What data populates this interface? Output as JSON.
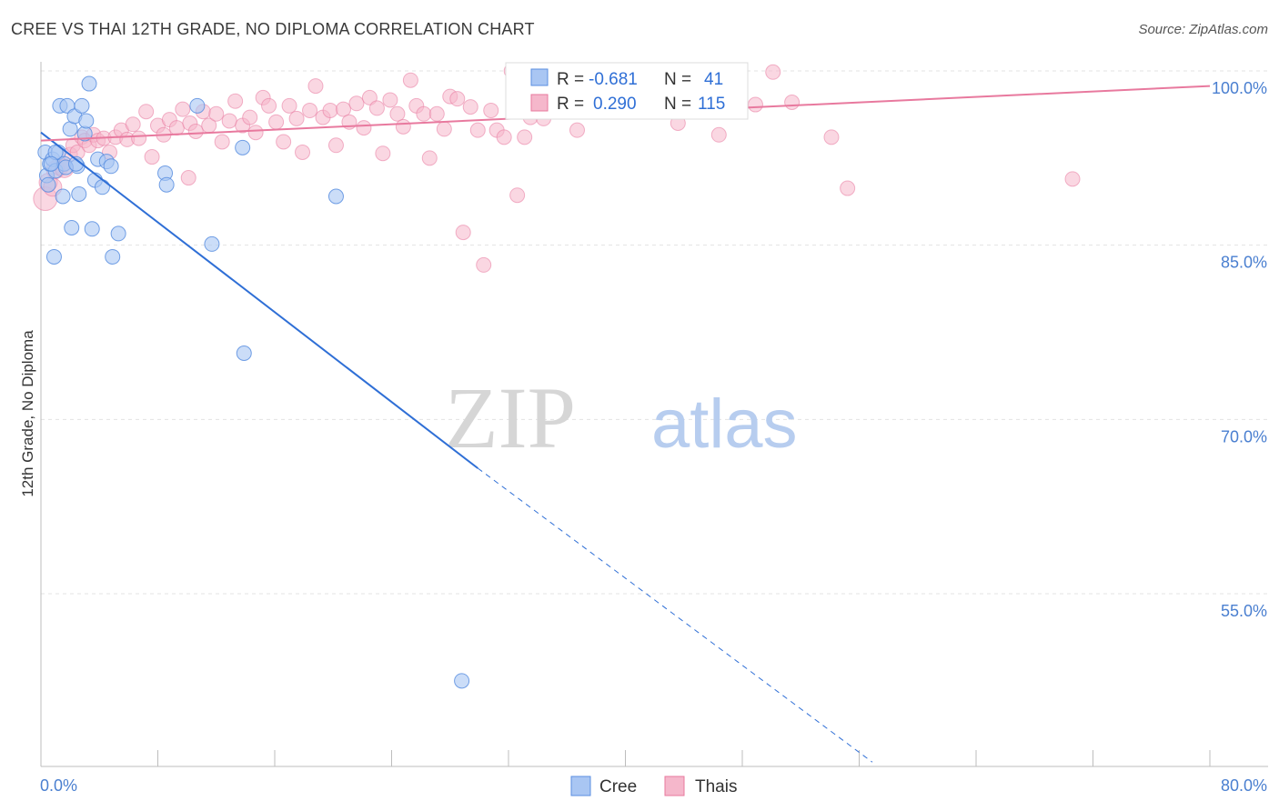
{
  "title": "CREE VS THAI 12TH GRADE, NO DIPLOMA CORRELATION CHART",
  "source": "Source: ZipAtlas.com",
  "watermark": {
    "zip": "ZIP",
    "atlas": "atlas"
  },
  "colors": {
    "cree": "#5b8fe0",
    "cree_fill": "#a9c6f3",
    "thais": "#e8799e",
    "thais_fill": "#f5b7cb",
    "axis_text": "#4a7fd0"
  },
  "legend": {
    "r_label": "R =",
    "n_label": "N =",
    "cree": {
      "r": "-0.681",
      "n": "41"
    },
    "thais": {
      "r": "0.290",
      "n": "115"
    }
  },
  "chart_data": {
    "type": "scatter",
    "title": "CREE VS THAI 12TH GRADE, NO DIPLOMA CORRELATION CHART",
    "xlabel": "",
    "ylabel": "12th Grade, No Diploma",
    "xlim": [
      0,
      80
    ],
    "ylim": [
      40.5,
      101
    ],
    "x_tick_labels": [
      "0.0%",
      "80.0%"
    ],
    "y_ticks": [
      100,
      85,
      70,
      55
    ],
    "y_tick_labels": [
      "100.0%",
      "85.0%",
      "70.0%",
      "55.0%"
    ],
    "grid": true,
    "legend_position": "top-center",
    "series": [
      {
        "name": "Cree",
        "trend": {
          "x0": 0,
          "y0": 94.7,
          "x1": 29.9,
          "y1": 65.8,
          "dash_to_x": 56.9,
          "dash_to_y": 40.5
        },
        "points": [
          [
            0.3,
            93.0
          ],
          [
            0.4,
            91.0
          ],
          [
            0.6,
            92.0
          ],
          [
            0.8,
            92.4
          ],
          [
            1.0,
            91.4
          ],
          [
            1.2,
            93.0
          ],
          [
            1.3,
            97.0
          ],
          [
            1.5,
            89.2
          ],
          [
            1.6,
            92.0
          ],
          [
            1.8,
            97.0
          ],
          [
            2.0,
            95.0
          ],
          [
            2.1,
            86.5
          ],
          [
            2.3,
            96.1
          ],
          [
            2.5,
            91.8
          ],
          [
            2.6,
            89.4
          ],
          [
            2.8,
            97.0
          ],
          [
            3.0,
            94.6
          ],
          [
            3.1,
            95.7
          ],
          [
            3.3,
            98.9
          ],
          [
            3.5,
            86.4
          ],
          [
            3.7,
            90.6
          ],
          [
            3.9,
            92.4
          ],
          [
            4.2,
            90.0
          ],
          [
            4.5,
            92.2
          ],
          [
            4.8,
            91.8
          ],
          [
            5.3,
            86.0
          ],
          [
            8.5,
            91.2
          ],
          [
            8.6,
            90.2
          ],
          [
            10.7,
            97.0
          ],
          [
            11.7,
            85.1
          ],
          [
            13.8,
            93.4
          ],
          [
            20.2,
            89.2
          ],
          [
            0.9,
            84.0
          ],
          [
            4.9,
            84.0
          ],
          [
            13.9,
            75.7
          ],
          [
            28.8,
            47.5
          ],
          [
            1.0,
            93.0
          ],
          [
            0.7,
            92.0
          ],
          [
            1.7,
            91.7
          ],
          [
            2.4,
            92.0
          ],
          [
            0.5,
            90.2
          ]
        ]
      },
      {
        "name": "Thais",
        "trend": {
          "x0": 0,
          "y0": 94.0,
          "x1": 80,
          "y1": 98.7
        },
        "points": [
          [
            0.3,
            89.0
          ],
          [
            0.5,
            90.4
          ],
          [
            0.8,
            90.0
          ],
          [
            1.0,
            91.5
          ],
          [
            1.3,
            91.8
          ],
          [
            1.6,
            91.6
          ],
          [
            2.0,
            92.8
          ],
          [
            2.2,
            93.6
          ],
          [
            2.5,
            93.0
          ],
          [
            2.8,
            94.3
          ],
          [
            3.0,
            94.0
          ],
          [
            3.3,
            93.6
          ],
          [
            3.6,
            94.5
          ],
          [
            3.9,
            94.0
          ],
          [
            4.3,
            94.2
          ],
          [
            4.7,
            93.0
          ],
          [
            5.1,
            94.3
          ],
          [
            5.5,
            94.9
          ],
          [
            5.9,
            94.1
          ],
          [
            6.3,
            95.4
          ],
          [
            6.7,
            94.2
          ],
          [
            7.2,
            96.5
          ],
          [
            7.6,
            92.6
          ],
          [
            8.0,
            95.3
          ],
          [
            8.4,
            94.5
          ],
          [
            8.8,
            95.8
          ],
          [
            9.3,
            95.1
          ],
          [
            9.7,
            96.7
          ],
          [
            10.2,
            95.5
          ],
          [
            10.6,
            94.8
          ],
          [
            11.1,
            96.5
          ],
          [
            11.5,
            95.3
          ],
          [
            12.0,
            96.3
          ],
          [
            12.4,
            93.9
          ],
          [
            12.9,
            95.7
          ],
          [
            13.3,
            97.4
          ],
          [
            13.8,
            95.3
          ],
          [
            14.3,
            96.0
          ],
          [
            14.7,
            94.7
          ],
          [
            15.2,
            97.7
          ],
          [
            15.6,
            97.0
          ],
          [
            16.1,
            95.6
          ],
          [
            16.6,
            93.9
          ],
          [
            17.0,
            97.0
          ],
          [
            17.5,
            95.9
          ],
          [
            17.9,
            93.0
          ],
          [
            18.4,
            96.6
          ],
          [
            18.8,
            98.7
          ],
          [
            19.3,
            96.0
          ],
          [
            19.8,
            96.6
          ],
          [
            20.2,
            93.6
          ],
          [
            20.7,
            96.7
          ],
          [
            21.1,
            95.6
          ],
          [
            21.6,
            97.2
          ],
          [
            22.1,
            95.1
          ],
          [
            22.5,
            97.7
          ],
          [
            23.0,
            96.8
          ],
          [
            23.4,
            92.9
          ],
          [
            23.9,
            97.5
          ],
          [
            24.4,
            96.3
          ],
          [
            24.8,
            95.2
          ],
          [
            25.3,
            99.2
          ],
          [
            25.7,
            97.0
          ],
          [
            26.2,
            96.3
          ],
          [
            26.6,
            92.5
          ],
          [
            27.1,
            96.3
          ],
          [
            27.6,
            95.0
          ],
          [
            28.0,
            97.8
          ],
          [
            28.5,
            97.6
          ],
          [
            28.9,
            86.1
          ],
          [
            29.4,
            96.9
          ],
          [
            29.9,
            94.9
          ],
          [
            30.3,
            83.3
          ],
          [
            30.8,
            96.6
          ],
          [
            31.2,
            94.9
          ],
          [
            31.7,
            94.3
          ],
          [
            32.2,
            100.0
          ],
          [
            32.6,
            89.3
          ],
          [
            33.1,
            94.3
          ],
          [
            33.5,
            96.0
          ],
          [
            34.0,
            99.0
          ],
          [
            34.4,
            95.9
          ],
          [
            34.9,
            98.7
          ],
          [
            35.4,
            98.7
          ],
          [
            35.8,
            96.6
          ],
          [
            36.3,
            98.3
          ],
          [
            36.7,
            94.9
          ],
          [
            37.2,
            98.7
          ],
          [
            37.7,
            96.6
          ],
          [
            38.1,
            99.5
          ],
          [
            38.6,
            97.0
          ],
          [
            39.0,
            98.7
          ],
          [
            39.5,
            97.3
          ],
          [
            40.0,
            98.7
          ],
          [
            40.4,
            96.5
          ],
          [
            40.9,
            98.9
          ],
          [
            41.3,
            98.7
          ],
          [
            41.8,
            98.5
          ],
          [
            42.2,
            99.3
          ],
          [
            42.7,
            98.6
          ],
          [
            43.2,
            98.7
          ],
          [
            43.6,
            95.5
          ],
          [
            44.1,
            97.4
          ],
          [
            44.6,
            97.0
          ],
          [
            45.0,
            98.0
          ],
          [
            45.5,
            97.3
          ],
          [
            46.0,
            96.9
          ],
          [
            46.4,
            94.5
          ],
          [
            48.9,
            97.1
          ],
          [
            50.1,
            99.9
          ],
          [
            51.4,
            97.3
          ],
          [
            54.1,
            94.3
          ],
          [
            55.2,
            89.9
          ],
          [
            70.6,
            90.7
          ],
          [
            10.1,
            90.8
          ]
        ]
      }
    ]
  }
}
